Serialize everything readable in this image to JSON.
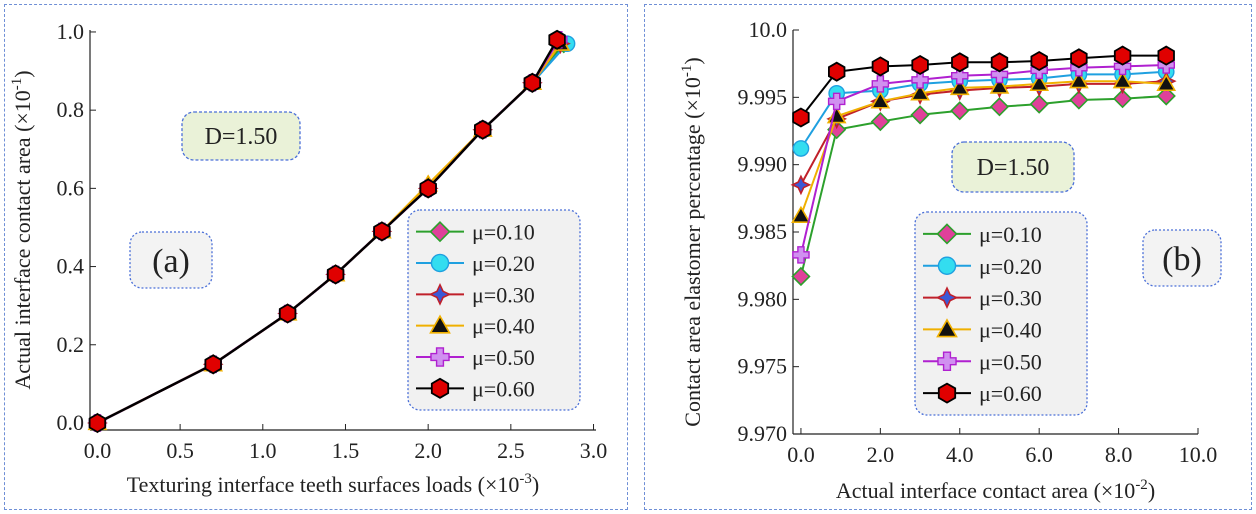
{
  "chart_data": [
    {
      "type": "line",
      "panel_label": "(a)",
      "annotation": "D=1.50",
      "xlabel": "Texturing interface teeth surfaces loads (×10",
      "xlabel_exp": "-3",
      "xlabel_close": ")",
      "ylabel": "Actual interface contact area (×10",
      "ylabel_exp": "-1",
      "ylabel_close": ")",
      "xlim": [
        0,
        3.0
      ],
      "ylim": [
        0,
        1.0
      ],
      "xticks": [
        "0.0",
        "0.5",
        "1.0",
        "1.5",
        "2.0",
        "2.5",
        "3.0"
      ],
      "yticks": [
        "0.0",
        "0.2",
        "0.4",
        "0.6",
        "0.8",
        "1.0"
      ],
      "legend_position": "lower-right",
      "series": [
        {
          "name": "μ=0.10",
          "color": "#2ca02c",
          "marker": "diamond",
          "fill": "#e0409a",
          "x": [
            0,
            0.7,
            1.15,
            1.44,
            1.72,
            2.0,
            2.33,
            2.63,
            2.82
          ],
          "y": [
            0,
            0.15,
            0.28,
            0.38,
            0.49,
            0.6,
            0.75,
            0.87,
            0.97
          ]
        },
        {
          "name": "μ=0.20",
          "color": "#1fa0e0",
          "marker": "circle",
          "fill": "#33ddf0",
          "x": [
            0,
            0.7,
            1.15,
            1.44,
            1.72,
            2.0,
            2.33,
            2.63,
            2.84
          ],
          "y": [
            0,
            0.15,
            0.28,
            0.38,
            0.49,
            0.6,
            0.75,
            0.87,
            0.97
          ]
        },
        {
          "name": "μ=0.30",
          "color": "#c0202a",
          "marker": "star4",
          "fill": "#3a5ad8",
          "x": [
            0,
            0.7,
            1.15,
            1.44,
            1.72,
            2.0,
            2.33,
            2.63,
            2.8
          ],
          "y": [
            0,
            0.15,
            0.28,
            0.38,
            0.49,
            0.6,
            0.75,
            0.87,
            0.97
          ]
        },
        {
          "name": "μ=0.40",
          "color": "#f0b000",
          "marker": "triangle",
          "fill": "#111111",
          "x": [
            0,
            0.7,
            1.15,
            1.44,
            1.72,
            2.0,
            2.33,
            2.63,
            2.8
          ],
          "y": [
            0,
            0.15,
            0.28,
            0.38,
            0.49,
            0.61,
            0.75,
            0.87,
            0.97
          ]
        },
        {
          "name": "μ=0.50",
          "color": "#b020d0",
          "marker": "plus",
          "fill": "#d090f0",
          "x": [
            0,
            0.7,
            1.15,
            1.44,
            1.72,
            2.0,
            2.33,
            2.63,
            2.79
          ],
          "y": [
            0,
            0.15,
            0.28,
            0.38,
            0.49,
            0.6,
            0.75,
            0.87,
            0.98
          ]
        },
        {
          "name": "μ=0.60",
          "color": "#000000",
          "marker": "hexagon",
          "fill": "#e00000",
          "x": [
            0,
            0.7,
            1.15,
            1.44,
            1.72,
            2.0,
            2.33,
            2.63,
            2.78
          ],
          "y": [
            0,
            0.15,
            0.28,
            0.38,
            0.49,
            0.6,
            0.75,
            0.87,
            0.98
          ]
        }
      ]
    },
    {
      "type": "line",
      "panel_label": "(b)",
      "annotation": "D=1.50",
      "xlabel": "Actual interface contact area (×10",
      "xlabel_exp": "-2",
      "xlabel_close": ")",
      "ylabel": "Contact area elastomer percentage (×10",
      "ylabel_exp": "-1",
      "ylabel_close": ")",
      "xlim": [
        0,
        10.0
      ],
      "ylim": [
        9.97,
        10.0
      ],
      "xticks": [
        "0.0",
        "2.0",
        "4.0",
        "6.0",
        "8.0",
        "10.0"
      ],
      "yticks": [
        "9.970",
        "9.975",
        "9.980",
        "9.985",
        "9.990",
        "9.995",
        "10.0"
      ],
      "legend_position": "lower-center",
      "series": [
        {
          "name": "μ=0.10",
          "color": "#2ca02c",
          "marker": "diamond",
          "fill": "#e0409a",
          "x": [
            0,
            0.9,
            2.0,
            3.0,
            4.0,
            5.0,
            6.0,
            7.0,
            8.1,
            9.2
          ],
          "y": [
            9.9817,
            9.9926,
            9.9932,
            9.9937,
            9.994,
            9.9943,
            9.9945,
            9.9948,
            9.9949,
            9.9951
          ]
        },
        {
          "name": "μ=0.20",
          "color": "#1fa0e0",
          "marker": "circle",
          "fill": "#33ddf0",
          "x": [
            0,
            0.9,
            2.0,
            3.0,
            4.0,
            5.0,
            6.0,
            7.0,
            8.1,
            9.2
          ],
          "y": [
            9.9912,
            9.9953,
            9.9955,
            9.996,
            9.9962,
            9.9963,
            9.9964,
            9.9967,
            9.9967,
            9.9969
          ]
        },
        {
          "name": "μ=0.30",
          "color": "#c0202a",
          "marker": "star4",
          "fill": "#3a5ad8",
          "x": [
            0,
            0.9,
            2.0,
            3.0,
            4.0,
            5.0,
            6.0,
            7.0,
            8.1,
            9.2
          ],
          "y": [
            9.9885,
            9.9934,
            9.9947,
            9.9952,
            9.9955,
            9.9957,
            9.9958,
            9.996,
            9.996,
            9.9962
          ]
        },
        {
          "name": "μ=0.40",
          "color": "#f0b000",
          "marker": "triangle",
          "fill": "#111111",
          "x": [
            0,
            0.9,
            2.0,
            3.0,
            4.0,
            5.0,
            6.0,
            7.0,
            8.1,
            9.2
          ],
          "y": [
            9.9862,
            9.9936,
            9.9947,
            9.9953,
            9.9957,
            9.9958,
            9.996,
            9.9962,
            9.9962,
            9.996
          ]
        },
        {
          "name": "μ=0.50",
          "color": "#b020d0",
          "marker": "plus",
          "fill": "#d090f0",
          "x": [
            0,
            0.9,
            2.0,
            3.0,
            4.0,
            5.0,
            6.0,
            7.0,
            8.1,
            9.2
          ],
          "y": [
            9.9833,
            9.9947,
            9.996,
            9.9963,
            9.9966,
            9.9967,
            9.997,
            9.9972,
            9.9973,
            9.9974
          ]
        },
        {
          "name": "μ=0.60",
          "color": "#000000",
          "marker": "hexagon",
          "fill": "#e00000",
          "x": [
            0,
            0.9,
            2.0,
            3.0,
            4.0,
            5.0,
            6.0,
            7.0,
            8.1,
            9.2
          ],
          "y": [
            9.9935,
            9.9969,
            9.9973,
            9.9974,
            9.9976,
            9.9976,
            9.9977,
            9.9979,
            9.9981,
            9.9981
          ]
        }
      ]
    }
  ]
}
